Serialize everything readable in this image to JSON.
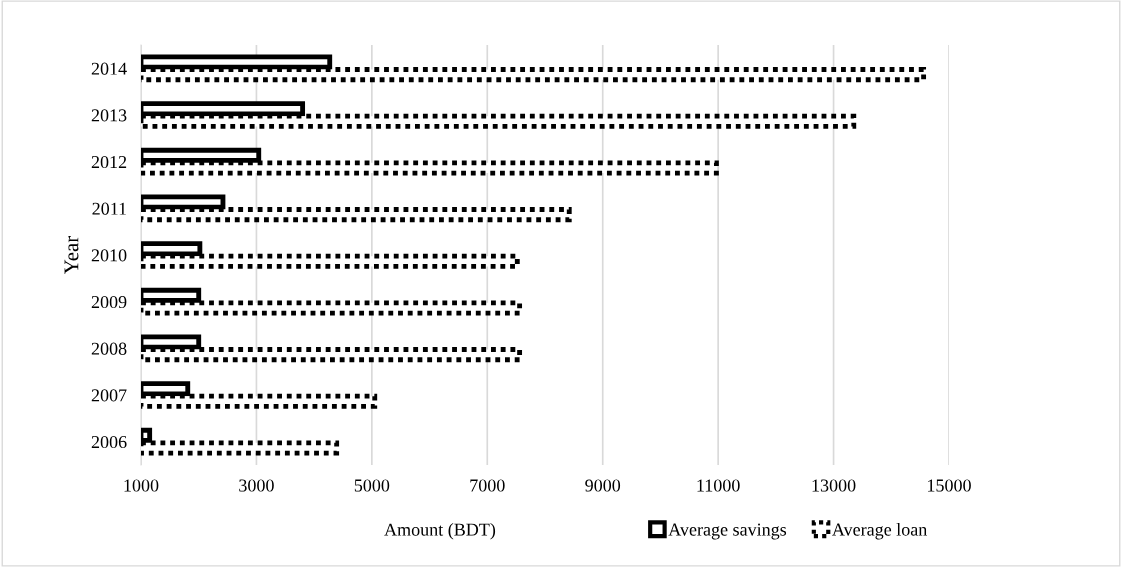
{
  "chart_data": {
    "type": "bar",
    "orientation": "horizontal",
    "xlabel": "Amount (BDT)",
    "ylabel": "Year",
    "categories": [
      "2014",
      "2013",
      "2012",
      "2011",
      "2010",
      "2009",
      "2008",
      "2007",
      "2006"
    ],
    "series": [
      {
        "name": "Average savings",
        "color": "#000000",
        "line_style": "solid",
        "values": [
          4270,
          3800,
          3040,
          2420,
          2020,
          2000,
          2000,
          1810,
          1150
        ]
      },
      {
        "name": "Average loan",
        "color": "#000000",
        "line_style": "dotted",
        "values": [
          14560,
          13350,
          10970,
          8420,
          7520,
          7560,
          7560,
          5050,
          4390
        ]
      }
    ],
    "xlim": [
      1000,
      15000
    ],
    "xticks": [
      1000,
      3000,
      5000,
      7000,
      9000,
      11000,
      13000,
      15000
    ],
    "grid": "x",
    "legend": "bottom"
  }
}
